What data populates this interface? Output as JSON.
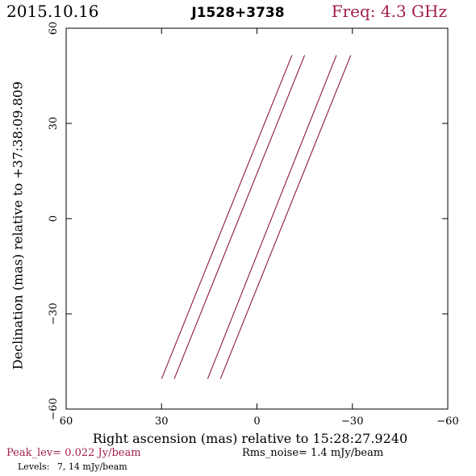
{
  "header": {
    "date": "2015.10.16",
    "source": "J1528+3738",
    "freq": "Freq: 4.3 GHz"
  },
  "footer": {
    "peak": "Peak_lev=  0.022 Jy/beam",
    "rms": "Rms_noise=   1.4 mJy/beam",
    "levels_label": "Levels:",
    "levels_values": "7,  14 mJy/beam"
  },
  "colors": {
    "accent": "#a0204a",
    "contour": "#8b1a3c"
  },
  "chart_data": {
    "type": "line",
    "xlabel": "Right ascension (mas) relative to 15:28:27.9240",
    "ylabel": "Declination (mas) relative to +37:38:09.809",
    "xlim": [
      60,
      -60
    ],
    "ylim": [
      -60,
      60
    ],
    "xticks": [
      60,
      30,
      0,
      -30,
      -60
    ],
    "yticks": [
      -60,
      -30,
      0,
      30,
      60
    ],
    "xtick_labels": [
      "60",
      "30",
      "0",
      "−30",
      "−60"
    ],
    "ytick_labels": [
      "−60",
      "−30",
      "0",
      "30",
      "60"
    ],
    "series": [
      {
        "values": [
          [
            30,
            -50.5
          ],
          [
            -11,
            51.5
          ]
        ]
      },
      {
        "values": [
          [
            26,
            -50.5
          ],
          [
            -15,
            51.5
          ]
        ]
      },
      {
        "values": [
          [
            15.5,
            -50.5
          ],
          [
            -25,
            51.5
          ]
        ]
      },
      {
        "values": [
          [
            11.5,
            -50.5
          ],
          [
            -29.5,
            51.5
          ]
        ]
      }
    ]
  }
}
